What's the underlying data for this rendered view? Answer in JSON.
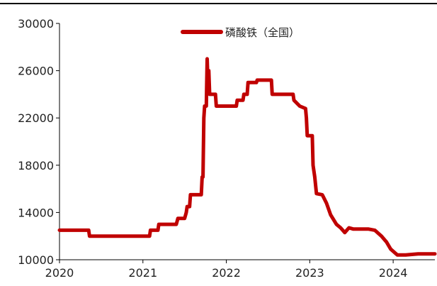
{
  "chart_data": {
    "type": "line",
    "title": "",
    "xlabel": "",
    "ylabel": "",
    "xlim": [
      2020.0,
      2024.5
    ],
    "ylim": [
      10000,
      30000
    ],
    "x_ticks": [
      2020,
      2021,
      2022,
      2023,
      2024
    ],
    "y_ticks": [
      10000,
      14000,
      18000,
      22000,
      26000,
      30000
    ],
    "legend": {
      "position": "top-center"
    },
    "colors": {
      "series": "#c00000",
      "axis": "#000000"
    },
    "series": [
      {
        "name": "磷酸铁（全国）",
        "points": [
          [
            2020.0,
            12500
          ],
          [
            2020.35,
            12500
          ],
          [
            2020.36,
            12000
          ],
          [
            2020.6,
            12000
          ],
          [
            2020.8,
            12000
          ],
          [
            2021.08,
            12000
          ],
          [
            2021.09,
            12500
          ],
          [
            2021.18,
            12500
          ],
          [
            2021.19,
            13000
          ],
          [
            2021.4,
            13000
          ],
          [
            2021.42,
            13500
          ],
          [
            2021.5,
            13500
          ],
          [
            2021.52,
            14000
          ],
          [
            2021.53,
            14500
          ],
          [
            2021.56,
            14500
          ],
          [
            2021.57,
            15500
          ],
          [
            2021.7,
            15500
          ],
          [
            2021.71,
            17000
          ],
          [
            2021.72,
            17000
          ],
          [
            2021.73,
            22000
          ],
          [
            2021.74,
            23000
          ],
          [
            2021.76,
            23000
          ],
          [
            2021.77,
            27000
          ],
          [
            2021.78,
            25000
          ],
          [
            2021.79,
            26000
          ],
          [
            2021.8,
            24000
          ],
          [
            2021.87,
            24000
          ],
          [
            2021.88,
            23000
          ],
          [
            2022.0,
            23000
          ],
          [
            2022.12,
            23000
          ],
          [
            2022.13,
            23500
          ],
          [
            2022.2,
            23500
          ],
          [
            2022.21,
            24000
          ],
          [
            2022.25,
            24000
          ],
          [
            2022.26,
            25000
          ],
          [
            2022.36,
            25000
          ],
          [
            2022.37,
            25200
          ],
          [
            2022.54,
            25200
          ],
          [
            2022.55,
            24000
          ],
          [
            2022.8,
            24000
          ],
          [
            2022.81,
            23500
          ],
          [
            2022.88,
            23000
          ],
          [
            2022.95,
            22800
          ],
          [
            2022.96,
            22000
          ],
          [
            2022.97,
            20500
          ],
          [
            2023.03,
            20500
          ],
          [
            2023.04,
            18000
          ],
          [
            2023.06,
            17000
          ],
          [
            2023.08,
            15600
          ],
          [
            2023.15,
            15500
          ],
          [
            2023.2,
            14800
          ],
          [
            2023.25,
            13800
          ],
          [
            2023.32,
            13000
          ],
          [
            2023.37,
            12700
          ],
          [
            2023.42,
            12300
          ],
          [
            2023.47,
            12700
          ],
          [
            2023.52,
            12600
          ],
          [
            2023.56,
            12600
          ],
          [
            2023.7,
            12600
          ],
          [
            2023.78,
            12500
          ],
          [
            2023.86,
            12000
          ],
          [
            2023.92,
            11500
          ],
          [
            2023.97,
            10900
          ],
          [
            2024.05,
            10400
          ],
          [
            2024.15,
            10400
          ],
          [
            2024.3,
            10500
          ],
          [
            2024.5,
            10500
          ]
        ]
      }
    ]
  }
}
